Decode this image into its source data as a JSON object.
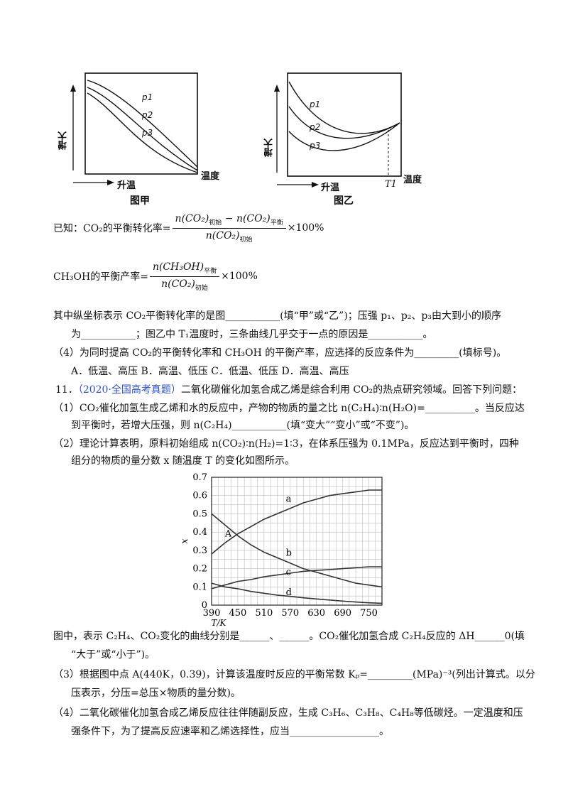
{
  "fig1": {
    "ylabel": "增大",
    "xlabel": "温度",
    "arrow_label": "升温",
    "caption": "图甲",
    "curves": [
      "p1",
      "p2",
      "p3"
    ]
  },
  "fig2": {
    "ylabel": "增大",
    "xlabel": "温度",
    "arrow_label": "升温",
    "caption": "图乙",
    "curves": [
      "p1",
      "p2",
      "p3"
    ],
    "mark": "T1"
  },
  "eq1": {
    "prefix": "已知：CO₂的平衡转化率=",
    "num_a": "n(CO₂)",
    "sub_init": "初始",
    "minus": "−",
    "num_b": "n(CO₂)",
    "sub_eq": "平衡",
    "den": "n(CO₂)",
    "den_sub": "初始",
    "suffix": "×100%"
  },
  "eq2": {
    "prefix": "CH₃OH的平衡产率=",
    "num": "n(CH₃OH)",
    "num_sub": "平衡",
    "den": "n(CO₂)",
    "den_sub": "初始",
    "suffix": "×100%"
  },
  "q10": {
    "line1": "其中纵坐标表示 CO₂平衡转化率的是图___________(填“甲”或“乙”)；压强 p₁、p₂、p₃由大到小的顺序",
    "line2": "为___________；图乙中 T₁温度时，三条曲线几乎交于一点的原因是___________。",
    "q4": "（4）为同时提高 CO₂的平衡转化率和 CH₃OH 的平衡产率，应选择的反应条件为_________(填标号)。",
    "options": "A．低温、高压      B．高温、低压     C．低温、低压  D．高温、高压"
  },
  "q11": {
    "number": "11．",
    "source": "（2020·全国高考真题）",
    "intro": "二氧化碳催化加氢合成乙烯是综合利用 CO₂的热点研究领域。回答下列问题：",
    "p1a": "（1）CO₂催化加氢生成乙烯和水的反应中，产物的物质的量之比 n(C₂H₄)∶n(H₂O)=__________。当反应达",
    "p1b": "到平衡时，若增大压强，则 n(C₂H₄)___________(填“变大”“变小”或“不变”)。",
    "p2a": "（2）理论计算表明，原料初始组成 n(CO₂)∶n(H₂)=1∶3，在体系压强为 0.1MPa，反应达到平衡时，四种",
    "p2b": "组分的物质的量分数 x 随温度 T 的变化如图所示。",
    "after1": "图中，表示 C₂H₄、CO₂变化的曲线分别是______、______。CO₂催化加氢合成 C₂H₄反应的 ΔH______0(填",
    "after2": "“大于”或“小于”)。",
    "p3a": "（3）根据图中点 A(440K，0.39)，计算该温度时反应的平衡常数 Kₚ=_________(MPa)⁻³(列出计算式。以分",
    "p3b": "压表示，分压=总压×物质的量分数)。",
    "p4a": "（4）二氧化碳催化加氢合成乙烯反应往往伴随副反应，生成 C₃H₆、C₃H₈、C₄H₈等低碳烃。一定温度和压",
    "p4b": "强条件下，为了提高反应速率和乙烯选择性，应当__________________。"
  },
  "chart_data": {
    "type": "line",
    "xlabel": "T/K",
    "ylabel": "x",
    "xlim": [
      390,
      780
    ],
    "ylim": [
      0,
      0.7
    ],
    "xticks": [
      390,
      450,
      510,
      570,
      630,
      690,
      750
    ],
    "yticks": [
      0,
      0.1,
      0.2,
      0.3,
      0.4,
      0.5,
      0.6,
      0.7
    ],
    "grid": true,
    "series": [
      {
        "name": "a",
        "x": [
          390,
          420,
          450,
          480,
          510,
          540,
          570,
          600,
          630,
          660,
          690,
          720,
          750,
          780
        ],
        "values": [
          0.28,
          0.34,
          0.39,
          0.43,
          0.47,
          0.5,
          0.53,
          0.56,
          0.58,
          0.6,
          0.61,
          0.62,
          0.63,
          0.63
        ]
      },
      {
        "name": "b",
        "x": [
          390,
          420,
          450,
          480,
          510,
          540,
          570,
          600,
          630,
          660,
          690,
          720,
          750,
          780
        ],
        "values": [
          0.5,
          0.44,
          0.38,
          0.33,
          0.29,
          0.26,
          0.23,
          0.2,
          0.18,
          0.16,
          0.14,
          0.12,
          0.11,
          0.1
        ]
      },
      {
        "name": "c",
        "x": [
          390,
          420,
          450,
          480,
          510,
          540,
          570,
          600,
          630,
          660,
          690,
          720,
          750,
          780
        ],
        "values": [
          0.09,
          0.11,
          0.13,
          0.14,
          0.155,
          0.165,
          0.175,
          0.185,
          0.19,
          0.195,
          0.2,
          0.205,
          0.21,
          0.21
        ]
      },
      {
        "name": "d",
        "x": [
          390,
          420,
          450,
          480,
          510,
          540,
          570,
          600,
          630,
          660,
          690,
          720,
          750,
          780
        ],
        "values": [
          0.12,
          0.1,
          0.09,
          0.075,
          0.065,
          0.055,
          0.048,
          0.04,
          0.034,
          0.028,
          0.022,
          0.017,
          0.013,
          0.01
        ]
      }
    ],
    "annotations": [
      {
        "text": "A",
        "x": 440,
        "y": 0.39
      }
    ]
  }
}
